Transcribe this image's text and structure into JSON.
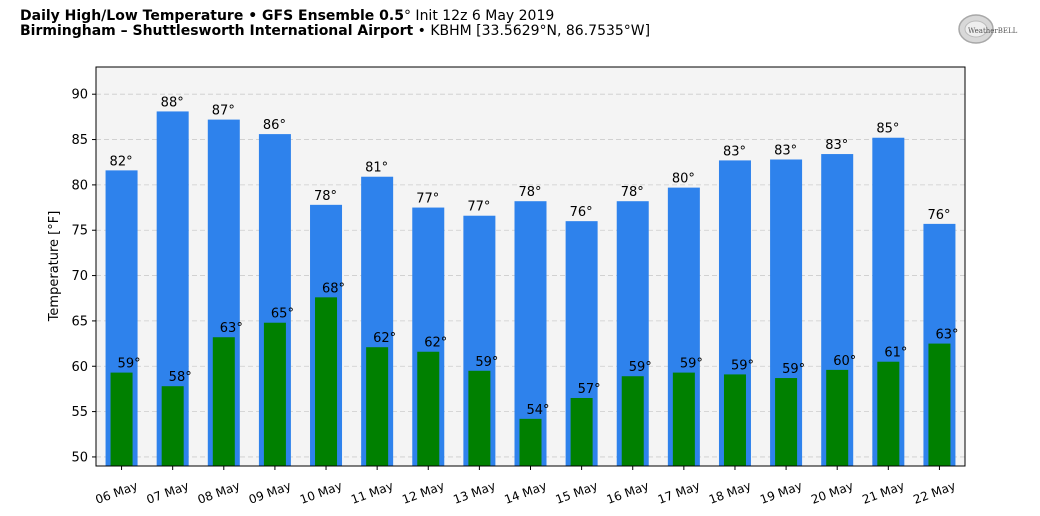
{
  "header": {
    "title_bold": "Daily High/Low Temperature • GFS Ensemble 0.5",
    "title_deg": "°",
    "title_init": " Init 12z 6 May 2019",
    "location_bold": "Birmingham – Shuttlesworth International Airport",
    "location_rest": " • KBHM [33.5629°N, 86.7535°W]"
  },
  "logo": {
    "text": "WeatherBELL",
    "icon": "weatherbell-logo"
  },
  "colors": {
    "high": "#2e82ec",
    "low": "#008000",
    "plot_bg": "#f4f4f4",
    "grid": "#cccccc"
  },
  "chart_data": {
    "type": "bar",
    "title": "Daily High/Low Temperature • GFS Ensemble 0.5° Init 12z 6 May 2019",
    "ylabel": "Temperature [°F]",
    "ylim": [
      49,
      93
    ],
    "yticks": [
      50,
      55,
      60,
      65,
      70,
      75,
      80,
      85,
      90
    ],
    "grid": true,
    "categories": [
      "06 May",
      "07 May",
      "08 May",
      "09 May",
      "10 May",
      "11 May",
      "12 May",
      "13 May",
      "14 May",
      "15 May",
      "16 May",
      "17 May",
      "18 May",
      "19 May",
      "20 May",
      "21 May",
      "22 May"
    ],
    "series": [
      {
        "key": "high",
        "values": [
          81.6,
          88.1,
          87.2,
          85.6,
          77.8,
          80.9,
          77.5,
          76.6,
          78.2,
          76.0,
          78.2,
          79.7,
          82.7,
          82.8,
          83.4,
          85.2,
          75.7
        ],
        "labels": [
          "82°",
          "88°",
          "87°",
          "86°",
          "78°",
          "81°",
          "77°",
          "77°",
          "78°",
          "76°",
          "78°",
          "80°",
          "83°",
          "83°",
          "83°",
          "85°",
          "76°"
        ]
      },
      {
        "key": "low",
        "values": [
          59.3,
          57.8,
          63.2,
          64.8,
          67.6,
          62.1,
          61.6,
          59.5,
          54.2,
          56.5,
          58.9,
          59.3,
          59.1,
          58.7,
          59.6,
          60.5,
          62.5
        ],
        "labels": [
          "59°",
          "58°",
          "63°",
          "65°",
          "68°",
          "62°",
          "62°",
          "59°",
          "54°",
          "57°",
          "59°",
          "59°",
          "59°",
          "59°",
          "60°",
          "61°",
          "63°"
        ]
      }
    ]
  }
}
